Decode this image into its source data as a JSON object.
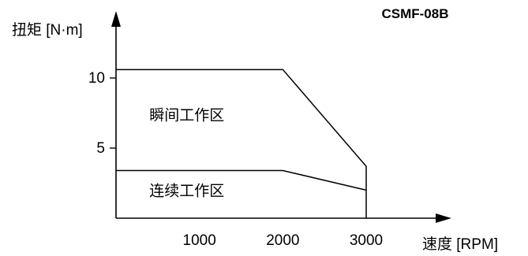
{
  "chart_data": {
    "type": "line",
    "title": "CSMF-08B",
    "xlabel": "速度 [RPM]",
    "ylabel": "扭矩 [N·m]",
    "xlim": [
      0,
      3800
    ],
    "ylim": [
      0,
      13
    ],
    "x_ticks": [
      1000,
      2000,
      3000
    ],
    "y_ticks": [
      5,
      10
    ],
    "x_tick_labels": [
      "1000",
      "2000",
      "3000"
    ],
    "y_tick_labels": [
      "5",
      "10"
    ],
    "series": [
      {
        "points": [
          [
            0,
            10.6
          ],
          [
            2000,
            10.6
          ],
          [
            3000,
            3.7
          ],
          [
            3000,
            0
          ]
        ]
      },
      {
        "points": [
          [
            0,
            3.4
          ],
          [
            2000,
            3.4
          ],
          [
            3000,
            2.0
          ]
        ]
      }
    ],
    "regions": [
      {
        "label": "瞬间工作区",
        "anchor": [
          400,
          7.0
        ]
      },
      {
        "label": "连续工作区",
        "anchor": [
          400,
          1.6
        ]
      }
    ],
    "grid": false,
    "legend": "none"
  }
}
